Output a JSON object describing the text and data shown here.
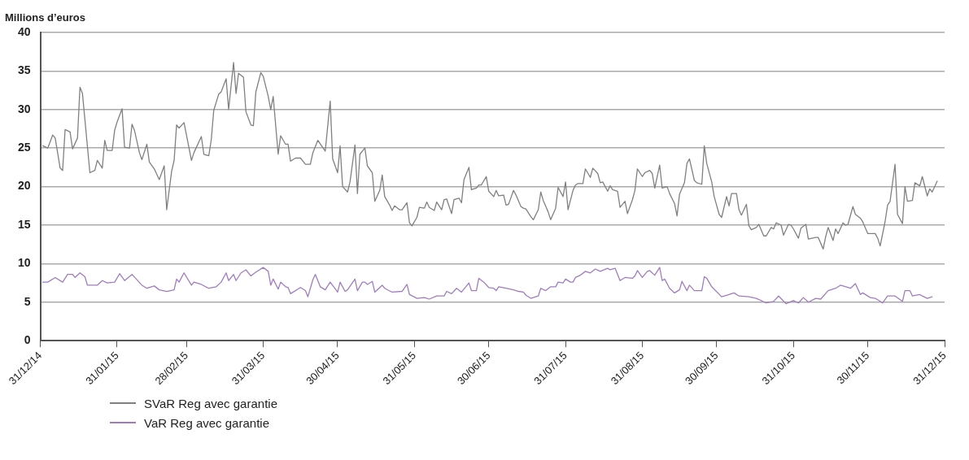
{
  "chart_data": {
    "type": "line",
    "ylabel": "Millions d’euros",
    "xlim": [
      "2014-12-31",
      "2015-12-31"
    ],
    "xticks": [
      {
        "value": "2014-12-31",
        "label": "31/12/14"
      },
      {
        "value": "2015-01-31",
        "label": "31/01/15"
      },
      {
        "value": "2015-02-28",
        "label": "28/02/15"
      },
      {
        "value": "2015-03-31",
        "label": "31/03/15"
      },
      {
        "value": "2015-04-30",
        "label": "30/04/15"
      },
      {
        "value": "2015-05-31",
        "label": "31/05/15"
      },
      {
        "value": "2015-06-30",
        "label": "30/06/15"
      },
      {
        "value": "2015-07-31",
        "label": "31/07/15"
      },
      {
        "value": "2015-08-31",
        "label": "31/08/15"
      },
      {
        "value": "2015-09-30",
        "label": "30/09/15"
      },
      {
        "value": "2015-10-31",
        "label": "31/10/15"
      },
      {
        "value": "2015-11-30",
        "label": "30/11/15"
      },
      {
        "value": "2015-12-31",
        "label": "31/12/15"
      }
    ],
    "ylim": [
      0,
      40
    ],
    "yticks": [
      0,
      5,
      10,
      15,
      20,
      25,
      30,
      35,
      40
    ],
    "grid": "y",
    "legend": "bottom left",
    "marker": "none",
    "line_style": "solid",
    "series": [
      {
        "name": "SVaR Reg avec garantie",
        "color": "#808080",
        "x": [
          "2015-01-01",
          "2015-01-03",
          "2015-01-05",
          "2015-01-06",
          "2015-01-08",
          "2015-01-09",
          "2015-01-10",
          "2015-01-12",
          "2015-01-13",
          "2015-01-15",
          "2015-01-16",
          "2015-01-17",
          "2015-01-20",
          "2015-01-22",
          "2015-01-23",
          "2015-01-25",
          "2015-01-26",
          "2015-01-27",
          "2015-01-29",
          "2015-01-30",
          "2015-01-31",
          "2015-02-02",
          "2015-02-03",
          "2015-02-05",
          "2015-02-06",
          "2015-02-07",
          "2015-02-09",
          "2015-02-10",
          "2015-02-12",
          "2015-02-13",
          "2015-02-15",
          "2015-02-17",
          "2015-02-19",
          "2015-02-20",
          "2015-02-22",
          "2015-02-23",
          "2015-02-24",
          "2015-02-25",
          "2015-02-27",
          "2015-03-02",
          "2015-03-03",
          "2015-03-06",
          "2015-03-07",
          "2015-03-09",
          "2015-03-10",
          "2015-03-11",
          "2015-03-13",
          "2015-03-14",
          "2015-03-16",
          "2015-03-17",
          "2015-03-19",
          "2015-03-20",
          "2015-03-21",
          "2015-03-23",
          "2015-03-24",
          "2015-03-26",
          "2015-03-27",
          "2015-03-28",
          "2015-03-30",
          "2015-03-31",
          "2015-04-02",
          "2015-04-03",
          "2015-04-04",
          "2015-04-06",
          "2015-04-07",
          "2015-04-09",
          "2015-04-10",
          "2015-04-11",
          "2015-04-13",
          "2015-04-15",
          "2015-04-17",
          "2015-04-19",
          "2015-04-20",
          "2015-04-22",
          "2015-04-25",
          "2015-04-27",
          "2015-04-28",
          "2015-04-30",
          "2015-05-01",
          "2015-05-02",
          "2015-05-04",
          "2015-05-05",
          "2015-05-07",
          "2015-05-08",
          "2015-05-09",
          "2015-05-11",
          "2015-05-12",
          "2015-05-14",
          "2015-05-15",
          "2015-05-17",
          "2015-05-18",
          "2015-05-19",
          "2015-05-21",
          "2015-05-22",
          "2015-05-23",
          "2015-05-25",
          "2015-05-26",
          "2015-05-28",
          "2015-05-29",
          "2015-05-30",
          "2015-06-01",
          "2015-06-02",
          "2015-06-04",
          "2015-06-05",
          "2015-06-06",
          "2015-06-08",
          "2015-06-09",
          "2015-06-11",
          "2015-06-12",
          "2015-06-13",
          "2015-06-15",
          "2015-06-16",
          "2015-06-18",
          "2015-06-19",
          "2015-06-20",
          "2015-06-22",
          "2015-06-23",
          "2015-06-25",
          "2015-06-26",
          "2015-06-27",
          "2015-06-29",
          "2015-06-30",
          "2015-07-02",
          "2015-07-03",
          "2015-07-04",
          "2015-07-06",
          "2015-07-07",
          "2015-07-08",
          "2015-07-10",
          "2015-07-11",
          "2015-07-13",
          "2015-07-14",
          "2015-07-15",
          "2015-07-17",
          "2015-07-18",
          "2015-07-20",
          "2015-07-21",
          "2015-07-22",
          "2015-07-24",
          "2015-07-25",
          "2015-07-27",
          "2015-07-28",
          "2015-07-30",
          "2015-07-31",
          "2015-08-01",
          "2015-08-03",
          "2015-08-04",
          "2015-08-05",
          "2015-08-07",
          "2015-08-08",
          "2015-08-10",
          "2015-08-11",
          "2015-08-13",
          "2015-08-14",
          "2015-08-15",
          "2015-08-17",
          "2015-08-18",
          "2015-08-19",
          "2015-08-21",
          "2015-08-22",
          "2015-08-24",
          "2015-08-25",
          "2015-08-27",
          "2015-08-28",
          "2015-08-29",
          "2015-08-31",
          "2015-09-01",
          "2015-09-03",
          "2015-09-04",
          "2015-09-05",
          "2015-09-07",
          "2015-09-08",
          "2015-09-10",
          "2015-09-11",
          "2015-09-13",
          "2015-09-14",
          "2015-09-15",
          "2015-09-17",
          "2015-09-18",
          "2015-09-19",
          "2015-09-21",
          "2015-09-22",
          "2015-09-24",
          "2015-09-25",
          "2015-09-26",
          "2015-09-28",
          "2015-09-29",
          "2015-10-01",
          "2015-10-02",
          "2015-10-04",
          "2015-10-05",
          "2015-10-06",
          "2015-10-08",
          "2015-10-09",
          "2015-10-10",
          "2015-10-12",
          "2015-10-13",
          "2015-10-14",
          "2015-10-16",
          "2015-10-17",
          "2015-10-19",
          "2015-10-20",
          "2015-10-22",
          "2015-10-23",
          "2015-10-24",
          "2015-10-26",
          "2015-10-27",
          "2015-10-29",
          "2015-10-30",
          "2015-10-31",
          "2015-11-02",
          "2015-11-03",
          "2015-11-05",
          "2015-11-06",
          "2015-11-09",
          "2015-11-10",
          "2015-11-12",
          "2015-11-13",
          "2015-11-14",
          "2015-11-16",
          "2015-11-17",
          "2015-11-18",
          "2015-11-20",
          "2015-11-21",
          "2015-11-22",
          "2015-11-24",
          "2015-11-25",
          "2015-11-27",
          "2015-11-28",
          "2015-11-30",
          "2015-12-01",
          "2015-12-03",
          "2015-12-04",
          "2015-12-05",
          "2015-12-07",
          "2015-12-08",
          "2015-12-09",
          "2015-12-11",
          "2015-12-12",
          "2015-12-14",
          "2015-12-15",
          "2015-12-16",
          "2015-12-18",
          "2015-12-19",
          "2015-12-21",
          "2015-12-22",
          "2015-12-24",
          "2015-12-25",
          "2015-12-26",
          "2015-12-28"
        ],
        "values": [
          25.3,
          25.0,
          26.7,
          26.3,
          22.4,
          22.1,
          27.4,
          27.1,
          24.9,
          26.3,
          32.9,
          32.1,
          21.8,
          22.1,
          23.4,
          22.4,
          26.0,
          24.7,
          24.7,
          27.3,
          28.4,
          30.1,
          25.1,
          25.0,
          28.1,
          27.3,
          24.4,
          23.5,
          25.5,
          23.2,
          22.3,
          20.9,
          22.7,
          17.0,
          22.0,
          23.4,
          28.0,
          27.6,
          28.3,
          23.4,
          24.4,
          26.5,
          24.2,
          24.0,
          26.1,
          29.9,
          32.0,
          32.3,
          34.0,
          30.0,
          36.1,
          32.1,
          34.7,
          34.2,
          29.7,
          28.0,
          27.9,
          32.3,
          34.8,
          34.3,
          31.7,
          30.0,
          31.7,
          24.2,
          26.6,
          25.5,
          25.5,
          23.3,
          23.7,
          23.7,
          22.9,
          22.9,
          24.4,
          26.0,
          24.6,
          31.1,
          23.6,
          21.8,
          25.3,
          20.0,
          19.3,
          20.6,
          25.4,
          19.1,
          24.2,
          25.0,
          22.7,
          21.8,
          18.1,
          19.5,
          21.5,
          18.7,
          17.6,
          16.9,
          17.5,
          17.0,
          17.0,
          17.9,
          15.3,
          14.9,
          16.0,
          17.3,
          17.2,
          18.0,
          17.3,
          16.9,
          18.0,
          17.0,
          18.3,
          18.4,
          16.5,
          18.3,
          18.5,
          17.9,
          20.9,
          22.5,
          19.6,
          19.8,
          20.2,
          20.2,
          21.3,
          19.4,
          18.7,
          19.5,
          18.8,
          18.9,
          17.6,
          17.7,
          19.5,
          18.9,
          17.4,
          17.2,
          17.1,
          16.1,
          15.7,
          17.0,
          19.3,
          18.2,
          16.7,
          15.7,
          17.2,
          19.9,
          18.7,
          20.6,
          17.0,
          19.5,
          20.2,
          20.4,
          20.4,
          22.3,
          21.2,
          22.4,
          21.7,
          20.5,
          20.6,
          19.4,
          20.1,
          19.6,
          19.4,
          17.3,
          18.1,
          16.5,
          18.3,
          19.5,
          22.3,
          21.3,
          21.8,
          22.1,
          21.7,
          19.8,
          22.8,
          19.8,
          20.0,
          19.1,
          17.8,
          16.2,
          19.0,
          20.5,
          23.0,
          23.6,
          20.8,
          20.5,
          20.3,
          25.3,
          23.0,
          20.6,
          18.7,
          16.4,
          16.0,
          18.7,
          17.5,
          19.1,
          19.1,
          17.0,
          16.3,
          17.7,
          14.9,
          14.4,
          14.7,
          15.1,
          13.6,
          13.6,
          14.7,
          14.5,
          15.3,
          15.0,
          13.7,
          15.1,
          15.0,
          14.5,
          13.3,
          14.6,
          15.1,
          13.2,
          13.4,
          13.4,
          11.9,
          13.5,
          14.7,
          13.0,
          14.5,
          13.9,
          15.3,
          15.0,
          15.1,
          17.4,
          16.4,
          15.9,
          15.4,
          13.9,
          13.9,
          13.9,
          13.3,
          12.3,
          15.5,
          17.6,
          18.1,
          22.9,
          16.4,
          15.2,
          20.0,
          18.1,
          18.2,
          20.5,
          20.1,
          21.3,
          18.8,
          19.7,
          19.3,
          20.7
        ]
      },
      {
        "name": "VaR Reg avec garantie",
        "color": "#a07cc0",
        "x": [
          "2015-01-01",
          "2015-01-03",
          "2015-01-06",
          "2015-01-09",
          "2015-01-11",
          "2015-01-13",
          "2015-01-14",
          "2015-01-16",
          "2015-01-18",
          "2015-01-19",
          "2015-01-23",
          "2015-01-25",
          "2015-01-27",
          "2015-01-30",
          "2015-02-01",
          "2015-02-03",
          "2015-02-06",
          "2015-02-10",
          "2015-02-12",
          "2015-02-15",
          "2015-02-17",
          "2015-02-20",
          "2015-02-23",
          "2015-02-24",
          "2015-02-25",
          "2015-02-27",
          "2015-03-02",
          "2015-03-03",
          "2015-03-06",
          "2015-03-09",
          "2015-03-12",
          "2015-03-14",
          "2015-03-16",
          "2015-03-17",
          "2015-03-19",
          "2015-03-20",
          "2015-03-22",
          "2015-03-24",
          "2015-03-26",
          "2015-03-28",
          "2015-03-31",
          "2015-04-02",
          "2015-04-03",
          "2015-04-04",
          "2015-04-06",
          "2015-04-07",
          "2015-04-09",
          "2015-04-10",
          "2015-04-11",
          "2015-04-15",
          "2015-04-17",
          "2015-04-18",
          "2015-04-20",
          "2015-04-21",
          "2015-04-23",
          "2015-04-25",
          "2015-04-27",
          "2015-04-30",
          "2015-05-01",
          "2015-05-03",
          "2015-05-04",
          "2015-05-07",
          "2015-05-08",
          "2015-05-10",
          "2015-05-11",
          "2015-05-12",
          "2015-05-14",
          "2015-05-15",
          "2015-05-18",
          "2015-05-19",
          "2015-05-22",
          "2015-05-26",
          "2015-05-28",
          "2015-05-29",
          "2015-06-01",
          "2015-06-04",
          "2015-06-06",
          "2015-06-09",
          "2015-06-12",
          "2015-06-13",
          "2015-06-15",
          "2015-06-17",
          "2015-06-19",
          "2015-06-22",
          "2015-06-23",
          "2015-06-25",
          "2015-06-26",
          "2015-06-28",
          "2015-06-30",
          "2015-07-02",
          "2015-07-03",
          "2015-07-04",
          "2015-07-07",
          "2015-07-10",
          "2015-07-12",
          "2015-07-14",
          "2015-07-15",
          "2015-07-17",
          "2015-07-20",
          "2015-07-21",
          "2015-07-23",
          "2015-07-25",
          "2015-07-27",
          "2015-07-28",
          "2015-07-30",
          "2015-07-31",
          "2015-08-02",
          "2015-08-03",
          "2015-08-04",
          "2015-08-06",
          "2015-08-08",
          "2015-08-10",
          "2015-08-12",
          "2015-08-14",
          "2015-08-17",
          "2015-08-18",
          "2015-08-20",
          "2015-08-22",
          "2015-08-24",
          "2015-08-27",
          "2015-08-28",
          "2015-08-29",
          "2015-08-31",
          "2015-09-02",
          "2015-09-03",
          "2015-09-05",
          "2015-09-07",
          "2015-09-08",
          "2015-09-09",
          "2015-09-11",
          "2015-09-13",
          "2015-09-15",
          "2015-09-16",
          "2015-09-18",
          "2015-09-19",
          "2015-09-21",
          "2015-09-24",
          "2015-09-25",
          "2015-09-26",
          "2015-09-28",
          "2015-10-02",
          "2015-10-04",
          "2015-10-07",
          "2015-10-09",
          "2015-10-13",
          "2015-10-16",
          "2015-10-20",
          "2015-10-23",
          "2015-10-25",
          "2015-10-28",
          "2015-10-31",
          "2015-11-02",
          "2015-11-04",
          "2015-11-06",
          "2015-11-09",
          "2015-11-11",
          "2015-11-14",
          "2015-11-17",
          "2015-11-19",
          "2015-11-23",
          "2015-11-25",
          "2015-11-27",
          "2015-11-28",
          "2015-12-01",
          "2015-12-03",
          "2015-12-06",
          "2015-12-08",
          "2015-12-11",
          "2015-12-14",
          "2015-12-15",
          "2015-12-17",
          "2015-12-18",
          "2015-12-21",
          "2015-12-22",
          "2015-12-24",
          "2015-12-26"
        ],
        "values": [
          7.6,
          7.6,
          8.2,
          7.6,
          8.6,
          8.6,
          8.2,
          8.8,
          8.3,
          7.2,
          7.2,
          7.8,
          7.5,
          7.6,
          8.7,
          7.8,
          8.6,
          7.2,
          6.8,
          7.1,
          6.6,
          6.4,
          6.6,
          8.0,
          7.6,
          8.8,
          7.2,
          7.6,
          7.3,
          6.8,
          7.0,
          7.6,
          8.8,
          7.8,
          8.6,
          7.8,
          8.8,
          9.2,
          8.4,
          8.9,
          9.5,
          9.0,
          7.2,
          8.0,
          6.7,
          7.6,
          7.0,
          6.9,
          6.1,
          6.9,
          6.5,
          5.7,
          7.9,
          8.6,
          7.0,
          6.6,
          7.6,
          6.3,
          7.6,
          6.4,
          6.6,
          8.0,
          6.5,
          7.6,
          7.6,
          7.3,
          7.7,
          6.3,
          7.2,
          6.8,
          6.3,
          6.4,
          7.3,
          6.0,
          5.5,
          5.6,
          5.4,
          5.8,
          5.8,
          6.4,
          6.1,
          6.8,
          6.3,
          7.5,
          6.5,
          6.5,
          8.1,
          7.6,
          6.9,
          6.8,
          6.5,
          7.0,
          6.8,
          6.6,
          6.4,
          6.3,
          5.9,
          5.5,
          5.8,
          6.8,
          6.5,
          7.0,
          7.0,
          7.6,
          7.5,
          8.0,
          7.6,
          7.6,
          8.2,
          8.5,
          9.0,
          8.8,
          9.3,
          9.0,
          9.4,
          9.2,
          9.4,
          7.8,
          8.2,
          8.1,
          8.4,
          9.1,
          8.2,
          9.0,
          9.1,
          8.5,
          9.5,
          7.8,
          8.0,
          6.8,
          6.2,
          6.6,
          7.7,
          6.5,
          7.2,
          6.5,
          6.5,
          8.3,
          8.1,
          7.0,
          5.7,
          5.9,
          6.2,
          5.8,
          5.7,
          5.5,
          4.9,
          5.1,
          5.8,
          4.8,
          5.2,
          4.9,
          5.6,
          5.0,
          5.5,
          5.4,
          6.5,
          6.8,
          7.2,
          6.8,
          7.4,
          6.0,
          6.2,
          5.6,
          5.5,
          4.9,
          5.8,
          5.8,
          5.1,
          6.5,
          6.5,
          5.8,
          6.0,
          5.8,
          5.5,
          5.7
        ]
      }
    ]
  }
}
